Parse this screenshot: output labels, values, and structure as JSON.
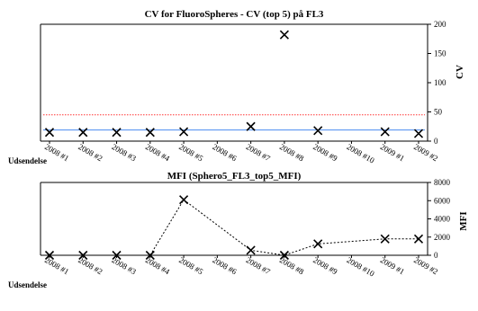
{
  "chart_data": [
    {
      "type": "scatter",
      "title": "CV for FluoroSpheres - CV (top 5) på FL3",
      "xlabel": "Udsendelse",
      "ylabel": "CV",
      "categories": [
        "2008 #1",
        "2008 #2",
        "2008 #3",
        "2008 #4",
        "2008 #5",
        "2008 #6",
        "2008 #7",
        "2008 #8",
        "2008 #9",
        "2008 #10",
        "2009 #1",
        "2009 #2"
      ],
      "ylim": [
        0,
        200
      ],
      "yticks": [
        0,
        50,
        100,
        150,
        200
      ],
      "series": [
        {
          "values": [
            15,
            15,
            15,
            15,
            16,
            null,
            25,
            182,
            18,
            null,
            16,
            13
          ],
          "color": "#000000",
          "marker": "x"
        }
      ],
      "reference_lines": [
        {
          "value": 19,
          "color": "#4a8cf0",
          "style": "solid"
        },
        {
          "value": 45,
          "color": "#ff3333",
          "style": "dotted"
        }
      ],
      "grid": false
    },
    {
      "type": "line",
      "title": "MFI (Sphero5_FL3_top5_MFI)",
      "xlabel": "Udsendelse",
      "ylabel": "MFI",
      "categories": [
        "2008 #1",
        "2008 #2",
        "2008 #3",
        "2008 #4",
        "2008 #5",
        "2008 #6",
        "2008 #7",
        "2008 #8",
        "2008 #9",
        "2008 #10",
        "2009 #1",
        "2009 #2"
      ],
      "ylim": [
        0,
        8000
      ],
      "yticks": [
        0,
        2000,
        4000,
        6000,
        8000
      ],
      "series": [
        {
          "values": [
            0,
            0,
            0,
            0,
            6100,
            null,
            550,
            0,
            1250,
            null,
            1800,
            1800
          ],
          "color": "#000000",
          "marker": "x",
          "line_style": "dotted"
        }
      ],
      "grid": false
    }
  ]
}
